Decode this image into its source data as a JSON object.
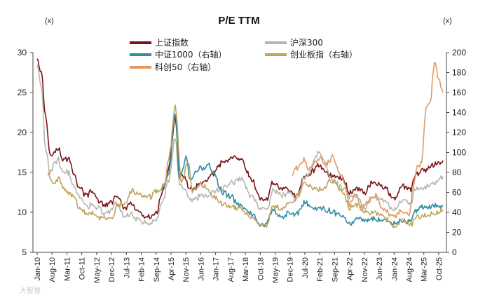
{
  "chart_data": {
    "type": "line",
    "title": "P/E TTM",
    "y_left_unit": "(x)",
    "y_right_unit": "(x)",
    "ylim_left": [
      5,
      30
    ],
    "ylim_right": [
      0,
      200
    ],
    "yticks_left": [
      5,
      10,
      15,
      20,
      25,
      30
    ],
    "yticks_right": [
      0,
      20,
      40,
      60,
      80,
      100,
      120,
      140,
      160,
      180,
      200
    ],
    "x_range": [
      "2010-01",
      "2025-12"
    ],
    "x_ticks": [
      {
        "label": "Jan-10",
        "date": "2010-01"
      },
      {
        "label": "Aug-10",
        "date": "2010-08"
      },
      {
        "label": "Mar-11",
        "date": "2011-03"
      },
      {
        "label": "Oct-11",
        "date": "2011-10"
      },
      {
        "label": "May-12",
        "date": "2012-05"
      },
      {
        "label": "Dec-12",
        "date": "2012-12"
      },
      {
        "label": "Jul-13",
        "date": "2013-07"
      },
      {
        "label": "Feb-14",
        "date": "2014-02"
      },
      {
        "label": "Sep-14",
        "date": "2014-09"
      },
      {
        "label": "Apr-15",
        "date": "2015-04"
      },
      {
        "label": "Nov-15",
        "date": "2015-11"
      },
      {
        "label": "Jun-16",
        "date": "2016-06"
      },
      {
        "label": "Jan-17",
        "date": "2017-01"
      },
      {
        "label": "Aug-17",
        "date": "2017-08"
      },
      {
        "label": "Mar-18",
        "date": "2018-03"
      },
      {
        "label": "Oct-18",
        "date": "2018-10"
      },
      {
        "label": "May-19",
        "date": "2019-05"
      },
      {
        "label": "Dec-19",
        "date": "2019-12"
      },
      {
        "label": "Jul-20",
        "date": "2020-07"
      },
      {
        "label": "Feb-21",
        "date": "2021-02"
      },
      {
        "label": "Sep-21",
        "date": "2021-09"
      },
      {
        "label": "Apr-22",
        "date": "2022-04"
      },
      {
        "label": "Nov-22",
        "date": "2022-11"
      },
      {
        "label": "Jun-23",
        "date": "2023-06"
      },
      {
        "label": "Jan-24",
        "date": "2024-01"
      },
      {
        "label": "Aug-24",
        "date": "2024-08"
      },
      {
        "label": "Mar-25",
        "date": "2025-03"
      },
      {
        "label": "Oct-25",
        "date": "2025-10"
      }
    ],
    "grid": false,
    "legend_position": "top",
    "series": [
      {
        "name": "上证指数",
        "axis": "left",
        "color": "#7a1315",
        "points": [
          [
            "2010-01",
            29.5
          ],
          [
            "2010-03",
            27.5
          ],
          [
            "2010-05",
            22
          ],
          [
            "2010-07",
            17.5
          ],
          [
            "2010-09",
            17.5
          ],
          [
            "2010-11",
            18
          ],
          [
            "2011-01",
            16.5
          ],
          [
            "2011-04",
            16.8
          ],
          [
            "2011-06",
            15
          ],
          [
            "2011-09",
            13
          ],
          [
            "2011-12",
            12.2
          ],
          [
            "2012-03",
            12.5
          ],
          [
            "2012-06",
            11.5
          ],
          [
            "2012-09",
            10.8
          ],
          [
            "2012-12",
            11.2
          ],
          [
            "2013-02",
            12.2
          ],
          [
            "2013-06",
            10.5
          ],
          [
            "2013-09",
            11
          ],
          [
            "2013-12",
            10.3
          ],
          [
            "2014-03",
            9.5
          ],
          [
            "2014-06",
            9.3
          ],
          [
            "2014-09",
            10
          ],
          [
            "2014-12",
            12.5
          ],
          [
            "2015-03",
            15.5
          ],
          [
            "2015-06",
            22
          ],
          [
            "2015-08",
            15
          ],
          [
            "2015-10",
            14.5
          ],
          [
            "2016-01",
            12.8
          ],
          [
            "2016-06",
            13.5
          ],
          [
            "2016-12",
            14.8
          ],
          [
            "2017-04",
            16.2
          ],
          [
            "2017-09",
            16.8
          ],
          [
            "2018-01",
            16.5
          ],
          [
            "2018-06",
            14
          ],
          [
            "2018-10",
            11.8
          ],
          [
            "2019-01",
            11.5
          ],
          [
            "2019-04",
            13.8
          ],
          [
            "2019-08",
            13
          ],
          [
            "2019-12",
            12.8
          ],
          [
            "2020-03",
            12
          ],
          [
            "2020-07",
            14.5
          ],
          [
            "2021-02",
            15.8
          ],
          [
            "2021-08",
            14.5
          ],
          [
            "2022-01",
            14.2
          ],
          [
            "2022-04",
            12.5
          ],
          [
            "2022-08",
            13
          ],
          [
            "2022-11",
            12.5
          ],
          [
            "2023-03",
            13.8
          ],
          [
            "2023-08",
            13.2
          ],
          [
            "2024-01",
            11.8
          ],
          [
            "2024-05",
            13.2
          ],
          [
            "2024-09",
            12.8
          ],
          [
            "2024-11",
            14.8
          ],
          [
            "2025-03",
            15.2
          ],
          [
            "2025-07",
            15.8
          ],
          [
            "2025-12",
            16.5
          ]
        ]
      },
      {
        "name": "沪深300",
        "axis": "left",
        "color": "#b4b6b0",
        "points": [
          [
            "2010-01",
            28.5
          ],
          [
            "2010-03",
            25.5
          ],
          [
            "2010-05",
            18
          ],
          [
            "2010-07",
            15
          ],
          [
            "2010-09",
            16
          ],
          [
            "2010-11",
            16.5
          ],
          [
            "2011-01",
            15
          ],
          [
            "2011-04",
            15
          ],
          [
            "2011-06",
            13.5
          ],
          [
            "2011-09",
            11.8
          ],
          [
            "2011-12",
            10.8
          ],
          [
            "2012-03",
            11
          ],
          [
            "2012-06",
            10.5
          ],
          [
            "2012-09",
            9.8
          ],
          [
            "2012-12",
            10.2
          ],
          [
            "2013-02",
            11.2
          ],
          [
            "2013-06",
            9.5
          ],
          [
            "2013-09",
            9.8
          ],
          [
            "2013-12",
            9.2
          ],
          [
            "2014-03",
            8.8
          ],
          [
            "2014-06",
            8.5
          ],
          [
            "2014-09",
            9.2
          ],
          [
            "2014-12",
            11.5
          ],
          [
            "2015-03",
            14
          ],
          [
            "2015-06",
            19.5
          ],
          [
            "2015-08",
            13.5
          ],
          [
            "2015-10",
            13
          ],
          [
            "2016-01",
            11.5
          ],
          [
            "2016-06",
            12
          ],
          [
            "2016-12",
            12.5
          ],
          [
            "2017-04",
            13
          ],
          [
            "2017-09",
            13.8
          ],
          [
            "2018-01",
            14.2
          ],
          [
            "2018-06",
            12
          ],
          [
            "2018-10",
            10.5
          ],
          [
            "2019-01",
            10.3
          ],
          [
            "2019-04",
            12.8
          ],
          [
            "2019-08",
            12
          ],
          [
            "2019-12",
            12.5
          ],
          [
            "2020-03",
            11.5
          ],
          [
            "2020-07",
            14.5
          ],
          [
            "2021-02",
            17.5
          ],
          [
            "2021-08",
            14
          ],
          [
            "2022-01",
            13
          ],
          [
            "2022-04",
            11.8
          ],
          [
            "2022-08",
            12
          ],
          [
            "2022-11",
            10.5
          ],
          [
            "2023-03",
            12
          ],
          [
            "2023-08",
            11.5
          ],
          [
            "2024-01",
            10.2
          ],
          [
            "2024-05",
            11.5
          ],
          [
            "2024-09",
            11
          ],
          [
            "2024-11",
            13
          ],
          [
            "2025-03",
            13
          ],
          [
            "2025-07",
            13.5
          ],
          [
            "2025-12",
            14.5
          ]
        ]
      },
      {
        "name": "中证1000（右轴）",
        "axis": "right",
        "color": "#2e8da3",
        "points": [
          [
            "2014-11",
            62
          ],
          [
            "2015-01",
            66
          ],
          [
            "2015-03",
            80
          ],
          [
            "2015-06",
            140
          ],
          [
            "2015-08",
            72
          ],
          [
            "2015-11",
            95
          ],
          [
            "2016-01",
            72
          ],
          [
            "2016-03",
            80
          ],
          [
            "2016-06",
            85
          ],
          [
            "2016-10",
            87
          ],
          [
            "2016-12",
            80
          ],
          [
            "2017-04",
            60
          ],
          [
            "2017-08",
            56
          ],
          [
            "2017-12",
            48
          ],
          [
            "2018-03",
            45
          ],
          [
            "2018-06",
            38
          ],
          [
            "2018-10",
            28
          ],
          [
            "2019-01",
            28
          ],
          [
            "2019-04",
            42
          ],
          [
            "2019-08",
            36
          ],
          [
            "2019-12",
            40
          ],
          [
            "2020-03",
            38
          ],
          [
            "2020-07",
            50
          ],
          [
            "2020-12",
            44
          ],
          [
            "2021-02",
            44
          ],
          [
            "2021-06",
            42
          ],
          [
            "2021-09",
            40
          ],
          [
            "2022-01",
            38
          ],
          [
            "2022-04",
            28
          ],
          [
            "2022-08",
            34
          ],
          [
            "2022-11",
            32
          ],
          [
            "2023-03",
            34
          ],
          [
            "2023-08",
            32
          ],
          [
            "2024-01",
            28
          ],
          [
            "2024-05",
            32
          ],
          [
            "2024-09",
            30
          ],
          [
            "2024-11",
            42
          ],
          [
            "2025-03",
            45
          ],
          [
            "2025-07",
            46
          ],
          [
            "2025-12",
            46
          ]
        ]
      },
      {
        "name": "创业板指（右轴）",
        "axis": "right",
        "color": "#c2a25c",
        "points": [
          [
            "2010-06",
            78
          ],
          [
            "2010-09",
            70
          ],
          [
            "2010-11",
            74
          ],
          [
            "2011-02",
            62
          ],
          [
            "2011-06",
            55
          ],
          [
            "2011-09",
            46
          ],
          [
            "2011-12",
            38
          ],
          [
            "2012-03",
            40
          ],
          [
            "2012-06",
            36
          ],
          [
            "2012-09",
            35
          ],
          [
            "2012-12",
            34
          ],
          [
            "2013-03",
            48
          ],
          [
            "2013-06",
            50
          ],
          [
            "2013-10",
            62
          ],
          [
            "2014-01",
            58
          ],
          [
            "2014-06",
            55
          ],
          [
            "2014-09",
            62
          ],
          [
            "2015-01",
            68
          ],
          [
            "2015-03",
            95
          ],
          [
            "2015-06",
            145
          ],
          [
            "2015-09",
            70
          ],
          [
            "2015-12",
            92
          ],
          [
            "2016-02",
            62
          ],
          [
            "2016-06",
            68
          ],
          [
            "2016-12",
            56
          ],
          [
            "2017-04",
            48
          ],
          [
            "2017-09",
            46
          ],
          [
            "2018-01",
            44
          ],
          [
            "2018-06",
            35
          ],
          [
            "2018-10",
            27
          ],
          [
            "2019-01",
            28
          ],
          [
            "2019-04",
            46
          ],
          [
            "2019-08",
            44
          ],
          [
            "2019-12",
            48
          ],
          [
            "2020-03",
            55
          ],
          [
            "2020-07",
            68
          ],
          [
            "2021-02",
            62
          ],
          [
            "2021-08",
            72
          ],
          [
            "2022-01",
            60
          ],
          [
            "2022-04",
            45
          ],
          [
            "2022-08",
            48
          ],
          [
            "2022-11",
            40
          ],
          [
            "2023-03",
            40
          ],
          [
            "2023-08",
            36
          ],
          [
            "2024-01",
            26
          ],
          [
            "2024-05",
            32
          ],
          [
            "2024-09",
            28
          ],
          [
            "2024-11",
            36
          ],
          [
            "2025-03",
            36
          ],
          [
            "2025-07",
            38
          ],
          [
            "2025-12",
            42
          ]
        ]
      },
      {
        "name": "科创50（右轴）",
        "axis": "right",
        "color": "#e39a62",
        "points": [
          [
            "2020-01",
            78
          ],
          [
            "2020-03",
            85
          ],
          [
            "2020-07",
            92
          ],
          [
            "2020-09",
            82
          ],
          [
            "2020-12",
            90
          ],
          [
            "2021-02",
            96
          ],
          [
            "2021-05",
            88
          ],
          [
            "2021-08",
            96
          ],
          [
            "2021-12",
            78
          ],
          [
            "2022-02",
            68
          ],
          [
            "2022-04",
            48
          ],
          [
            "2022-07",
            58
          ],
          [
            "2022-10",
            42
          ],
          [
            "2023-01",
            52
          ],
          [
            "2023-04",
            56
          ],
          [
            "2023-08",
            44
          ],
          [
            "2024-01",
            36
          ],
          [
            "2024-05",
            42
          ],
          [
            "2024-08",
            36
          ],
          [
            "2024-10",
            65
          ],
          [
            "2024-12",
            85
          ],
          [
            "2025-02",
            90
          ],
          [
            "2025-04",
            145
          ],
          [
            "2025-06",
            150
          ],
          [
            "2025-08",
            190
          ],
          [
            "2025-10",
            175
          ],
          [
            "2025-12",
            160
          ]
        ]
      }
    ]
  },
  "watermark": "大智慧"
}
